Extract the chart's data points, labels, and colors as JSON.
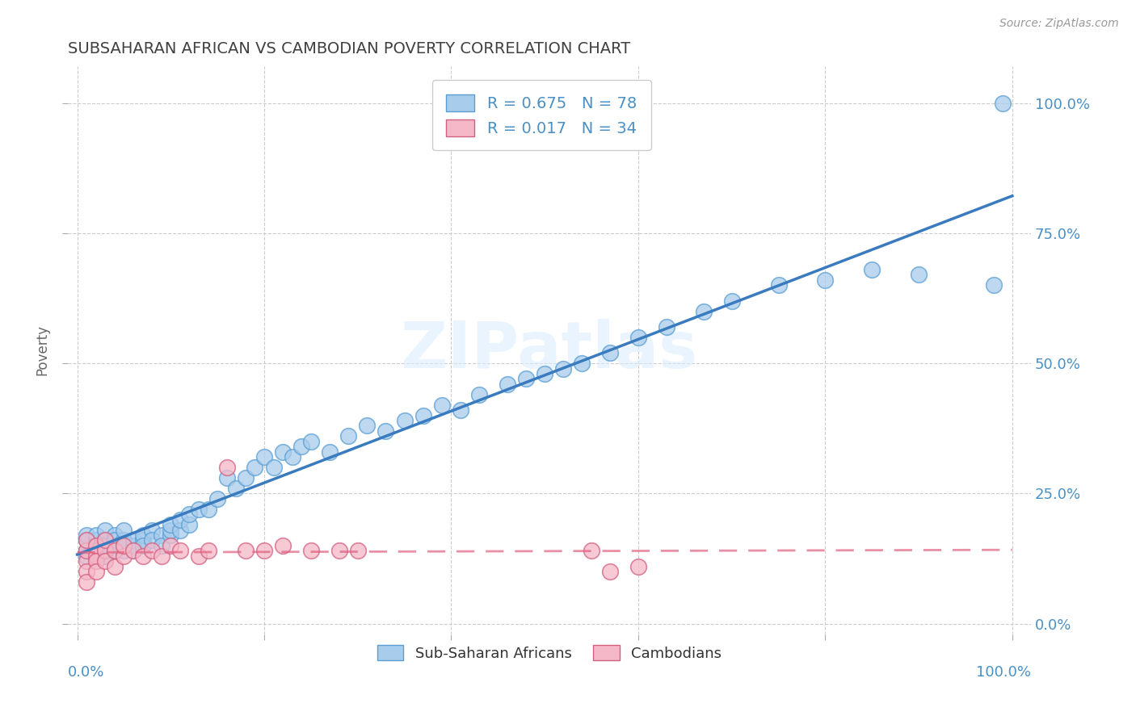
{
  "title": "SUBSAHARAN AFRICAN VS CAMBODIAN POVERTY CORRELATION CHART",
  "source": "Source: ZipAtlas.com",
  "ylabel": "Poverty",
  "legend_label1": "Sub-Saharan Africans",
  "legend_label2": "Cambodians",
  "r1": "0.675",
  "n1": "78",
  "r2": "0.017",
  "n2": "34",
  "color_blue": "#a8ccec",
  "color_blue_edge": "#5a9fd4",
  "color_pink": "#f5b8c8",
  "color_pink_edge": "#d46080",
  "color_blue_line": "#3a7bbf",
  "color_pink_line": "#e06080",
  "color_title": "#404040",
  "watermark": "ZIPatlas",
  "blue_x": [
    0.01,
    0.01,
    0.01,
    0.01,
    0.02,
    0.02,
    0.02,
    0.02,
    0.02,
    0.02,
    0.03,
    0.03,
    0.03,
    0.03,
    0.03,
    0.04,
    0.04,
    0.04,
    0.04,
    0.05,
    0.05,
    0.05,
    0.05,
    0.06,
    0.06,
    0.06,
    0.07,
    0.07,
    0.07,
    0.08,
    0.08,
    0.09,
    0.09,
    0.1,
    0.1,
    0.1,
    0.11,
    0.11,
    0.12,
    0.12,
    0.13,
    0.14,
    0.15,
    0.16,
    0.17,
    0.18,
    0.19,
    0.2,
    0.21,
    0.22,
    0.23,
    0.24,
    0.25,
    0.27,
    0.29,
    0.31,
    0.33,
    0.35,
    0.37,
    0.39,
    0.41,
    0.43,
    0.46,
    0.48,
    0.5,
    0.52,
    0.54,
    0.57,
    0.6,
    0.63,
    0.67,
    0.7,
    0.75,
    0.8,
    0.85,
    0.9,
    0.98,
    0.99
  ],
  "blue_y": [
    0.14,
    0.16,
    0.13,
    0.17,
    0.15,
    0.14,
    0.16,
    0.13,
    0.15,
    0.17,
    0.14,
    0.16,
    0.13,
    0.15,
    0.18,
    0.15,
    0.14,
    0.17,
    0.16,
    0.14,
    0.15,
    0.16,
    0.18,
    0.15,
    0.16,
    0.14,
    0.16,
    0.17,
    0.15,
    0.18,
    0.16,
    0.17,
    0.15,
    0.17,
    0.18,
    0.19,
    0.18,
    0.2,
    0.19,
    0.21,
    0.22,
    0.22,
    0.24,
    0.28,
    0.26,
    0.28,
    0.3,
    0.32,
    0.3,
    0.33,
    0.32,
    0.34,
    0.35,
    0.33,
    0.36,
    0.38,
    0.37,
    0.39,
    0.4,
    0.42,
    0.41,
    0.44,
    0.46,
    0.47,
    0.48,
    0.49,
    0.5,
    0.52,
    0.55,
    0.57,
    0.6,
    0.62,
    0.65,
    0.66,
    0.68,
    0.67,
    0.65,
    1.0
  ],
  "pink_x": [
    0.01,
    0.01,
    0.01,
    0.01,
    0.01,
    0.02,
    0.02,
    0.02,
    0.02,
    0.03,
    0.03,
    0.03,
    0.04,
    0.04,
    0.05,
    0.05,
    0.06,
    0.07,
    0.08,
    0.09,
    0.1,
    0.11,
    0.13,
    0.14,
    0.16,
    0.18,
    0.2,
    0.22,
    0.25,
    0.28,
    0.3,
    0.55,
    0.57,
    0.6
  ],
  "pink_y": [
    0.12,
    0.14,
    0.16,
    0.1,
    0.08,
    0.13,
    0.15,
    0.12,
    0.1,
    0.14,
    0.12,
    0.16,
    0.11,
    0.14,
    0.13,
    0.15,
    0.14,
    0.13,
    0.14,
    0.13,
    0.15,
    0.14,
    0.13,
    0.14,
    0.3,
    0.14,
    0.14,
    0.15,
    0.14,
    0.14,
    0.14,
    0.14,
    0.1,
    0.11
  ]
}
